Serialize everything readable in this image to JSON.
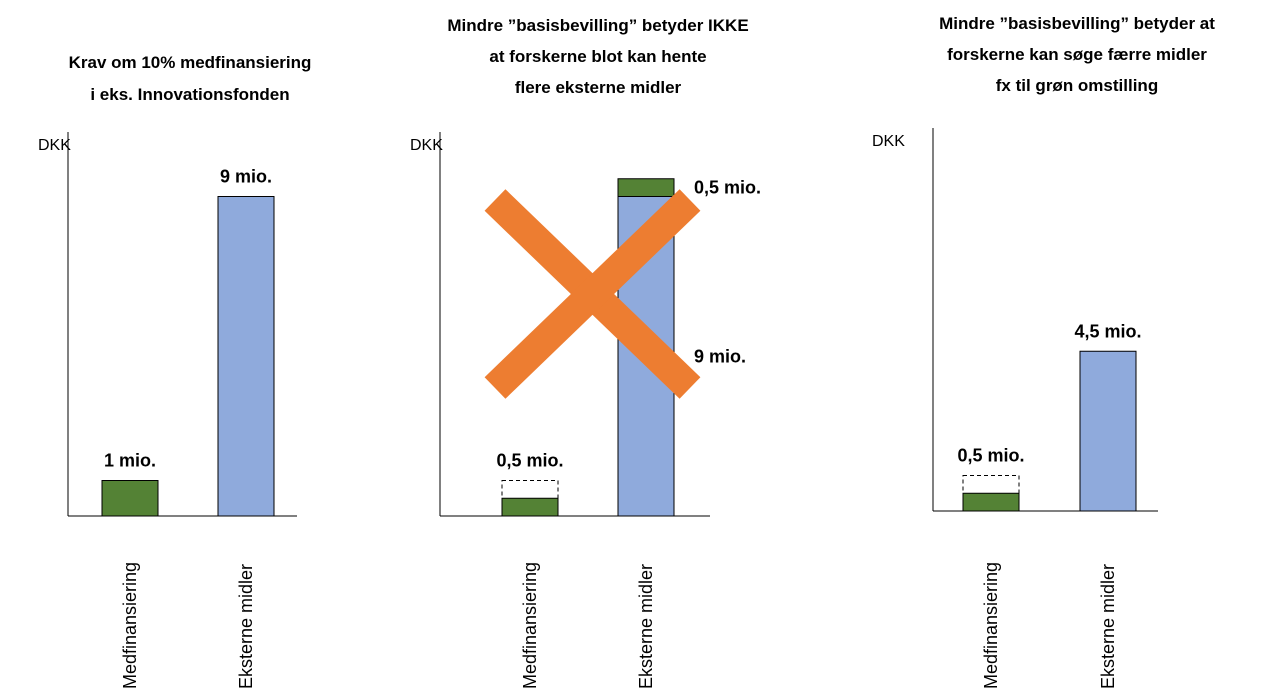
{
  "colors": {
    "medfinansiering": "#548235",
    "eksterne": "#8FAADC",
    "bar_stroke": "#000000",
    "cross": "#ED7D31",
    "axis": "#000000"
  },
  "chart_data": [
    {
      "type": "bar",
      "title_lines": [
        "Krav om 10% medfinansiering",
        "i eks. Innovationsfonden"
      ],
      "ylabel": "DKK",
      "categories": [
        "Medfinansiering",
        "Eksterne midler"
      ],
      "ylim": [
        0,
        10
      ],
      "bars": [
        {
          "category": "Medfinansiering",
          "segments": [
            {
              "value": 1,
              "color_key": "medfinansiering"
            }
          ],
          "label": "1 mio."
        },
        {
          "category": "Eksterne midler",
          "segments": [
            {
              "value": 9,
              "color_key": "eksterne"
            }
          ],
          "label": "9 mio."
        }
      ]
    },
    {
      "type": "bar",
      "stacked": true,
      "title_lines": [
        "Mindre ”basisbevilling” betyder IKKE",
        "at forskerne blot kan hente",
        "flere eksterne midler"
      ],
      "ylabel": "DKK",
      "categories": [
        "Medfinansiering",
        "Eksterne midler"
      ],
      "ylim": [
        0,
        10
      ],
      "crossed_out": true,
      "bars": [
        {
          "category": "Medfinansiering",
          "segments": [
            {
              "value": 0.5,
              "color_key": "medfinansiering"
            }
          ],
          "dashed_outline_value": 1,
          "label": "0,5 mio."
        },
        {
          "category": "Eksterne midler",
          "segments": [
            {
              "value": 9,
              "color_key": "eksterne",
              "label": "9 mio."
            },
            {
              "value": 0.5,
              "color_key": "medfinansiering",
              "label": "0,5 mio."
            }
          ]
        }
      ]
    },
    {
      "type": "bar",
      "title_lines": [
        "Mindre ”basisbevilling” betyder at",
        "forskerne kan søge færre midler",
        "fx til grøn omstilling"
      ],
      "ylabel": "DKK",
      "categories": [
        "Medfinansiering",
        "Eksterne midler"
      ],
      "ylim": [
        0,
        10
      ],
      "bars": [
        {
          "category": "Medfinansiering",
          "segments": [
            {
              "value": 0.5,
              "color_key": "medfinansiering"
            }
          ],
          "dashed_outline_value": 1,
          "label": "0,5 mio."
        },
        {
          "category": "Eksterne midler",
          "segments": [
            {
              "value": 4.5,
              "color_key": "eksterne"
            }
          ],
          "label": "4,5 mio."
        }
      ]
    }
  ]
}
